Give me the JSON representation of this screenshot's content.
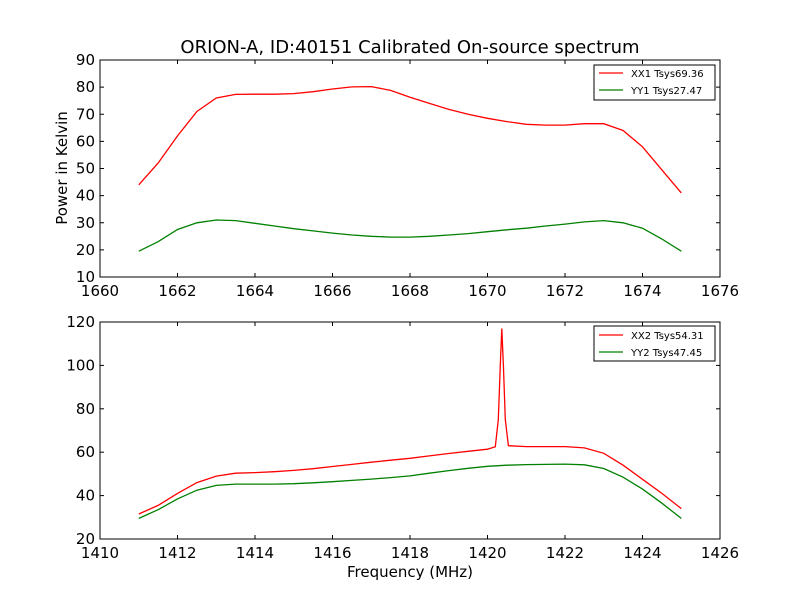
{
  "title": "ORION-A, ID:40151 Calibrated On-source spectrum",
  "chart_data": [
    {
      "type": "line",
      "ylabel": "Power in Kelvin",
      "xlabel": "",
      "xlim": [
        1660,
        1676
      ],
      "ylim": [
        10,
        90
      ],
      "xticks": [
        "1660",
        "1662",
        "1664",
        "1666",
        "1668",
        "1670",
        "1672",
        "1674",
        "1676"
      ],
      "yticks": [
        "10",
        "20",
        "30",
        "40",
        "50",
        "60",
        "70",
        "80",
        "90"
      ],
      "legend_position": "top-right",
      "series": [
        {
          "name": "XX1 Tsys69.36",
          "color": "#ff0000",
          "points": [
            [
              1661,
              44
            ],
            [
              1661.5,
              52
            ],
            [
              1662,
              62
            ],
            [
              1662.5,
              71
            ],
            [
              1663,
              76
            ],
            [
              1663.5,
              77.3
            ],
            [
              1664,
              77.4
            ],
            [
              1664.5,
              77.4
            ],
            [
              1665,
              77.6
            ],
            [
              1665.5,
              78.3
            ],
            [
              1666,
              79.3
            ],
            [
              1666.5,
              80.1
            ],
            [
              1667,
              80.2
            ],
            [
              1667.5,
              78.8
            ],
            [
              1668,
              76.3
            ],
            [
              1668.5,
              74
            ],
            [
              1669,
              71.8
            ],
            [
              1669.5,
              70
            ],
            [
              1670,
              68.5
            ],
            [
              1670.5,
              67.3
            ],
            [
              1671,
              66.3
            ],
            [
              1671.5,
              66
            ],
            [
              1672,
              66
            ],
            [
              1672.5,
              66.5
            ],
            [
              1673,
              66.5
            ],
            [
              1673.5,
              64
            ],
            [
              1674,
              58
            ],
            [
              1674.5,
              49.5
            ],
            [
              1675,
              41
            ]
          ]
        },
        {
          "name": "YY1 Tsys27.47",
          "color": "#008000",
          "points": [
            [
              1661,
              19.5
            ],
            [
              1661.5,
              23
            ],
            [
              1662,
              27.5
            ],
            [
              1662.5,
              30
            ],
            [
              1663,
              31
            ],
            [
              1663.5,
              30.8
            ],
            [
              1664,
              29.8
            ],
            [
              1664.5,
              28.8
            ],
            [
              1665,
              27.8
            ],
            [
              1665.5,
              27
            ],
            [
              1666,
              26.2
            ],
            [
              1666.5,
              25.5
            ],
            [
              1667,
              25
            ],
            [
              1667.5,
              24.7
            ],
            [
              1668,
              24.7
            ],
            [
              1668.5,
              25
            ],
            [
              1669,
              25.5
            ],
            [
              1669.5,
              26
            ],
            [
              1670,
              26.7
            ],
            [
              1670.5,
              27.4
            ],
            [
              1671,
              28
            ],
            [
              1671.5,
              28.8
            ],
            [
              1672,
              29.5
            ],
            [
              1672.5,
              30.3
            ],
            [
              1673,
              30.8
            ],
            [
              1673.5,
              30
            ],
            [
              1674,
              28
            ],
            [
              1674.5,
              24
            ],
            [
              1675,
              19.5
            ]
          ]
        }
      ]
    },
    {
      "type": "line",
      "ylabel": "",
      "xlabel": "Frequency (MHz)",
      "xlim": [
        1410,
        1426
      ],
      "ylim": [
        20,
        120
      ],
      "xticks": [
        "1410",
        "1412",
        "1414",
        "1416",
        "1418",
        "1420",
        "1422",
        "1424",
        "1426"
      ],
      "yticks": [
        "20",
        "40",
        "60",
        "80",
        "100",
        "120"
      ],
      "legend_position": "top-right",
      "series": [
        {
          "name": "XX2 Tsys54.31",
          "color": "#ff0000",
          "points": [
            [
              1411,
              31.5
            ],
            [
              1411.5,
              35.5
            ],
            [
              1412,
              41
            ],
            [
              1412.5,
              46
            ],
            [
              1413,
              49
            ],
            [
              1413.5,
              50.3
            ],
            [
              1414,
              50.6
            ],
            [
              1414.5,
              51
            ],
            [
              1415,
              51.6
            ],
            [
              1415.5,
              52.4
            ],
            [
              1416,
              53.4
            ],
            [
              1416.5,
              54.4
            ],
            [
              1417,
              55.4
            ],
            [
              1417.5,
              56.3
            ],
            [
              1418,
              57.2
            ],
            [
              1418.5,
              58.3
            ],
            [
              1419,
              59.4
            ],
            [
              1419.5,
              60.4
            ],
            [
              1420,
              61.4
            ],
            [
              1420.2,
              62.5
            ],
            [
              1420.28,
              75
            ],
            [
              1420.33,
              100
            ],
            [
              1420.37,
              117
            ],
            [
              1420.41,
              100
            ],
            [
              1420.46,
              75
            ],
            [
              1420.54,
              63
            ],
            [
              1421,
              62.6
            ],
            [
              1421.5,
              62.6
            ],
            [
              1422,
              62.6
            ],
            [
              1422.5,
              62
            ],
            [
              1423,
              59.5
            ],
            [
              1423.5,
              54
            ],
            [
              1424,
              47.5
            ],
            [
              1424.5,
              41
            ],
            [
              1425,
              34
            ]
          ]
        },
        {
          "name": "YY2 Tsys47.45",
          "color": "#008000",
          "points": [
            [
              1411,
              29.5
            ],
            [
              1411.5,
              33.5
            ],
            [
              1412,
              38.5
            ],
            [
              1412.5,
              42.5
            ],
            [
              1413,
              44.7
            ],
            [
              1413.5,
              45.3
            ],
            [
              1414,
              45.3
            ],
            [
              1414.5,
              45.3
            ],
            [
              1415,
              45.5
            ],
            [
              1415.5,
              45.9
            ],
            [
              1416,
              46.4
            ],
            [
              1416.5,
              47
            ],
            [
              1417,
              47.6
            ],
            [
              1417.5,
              48.3
            ],
            [
              1418,
              49.1
            ],
            [
              1418.5,
              50.3
            ],
            [
              1419,
              51.5
            ],
            [
              1419.5,
              52.6
            ],
            [
              1420,
              53.5
            ],
            [
              1420.5,
              54
            ],
            [
              1421,
              54.3
            ],
            [
              1421.5,
              54.4
            ],
            [
              1422,
              54.5
            ],
            [
              1422.5,
              54.2
            ],
            [
              1423,
              52.5
            ],
            [
              1423.5,
              48.5
            ],
            [
              1424,
              43
            ],
            [
              1424.5,
              36.5
            ],
            [
              1425,
              29.5
            ]
          ]
        }
      ]
    }
  ]
}
